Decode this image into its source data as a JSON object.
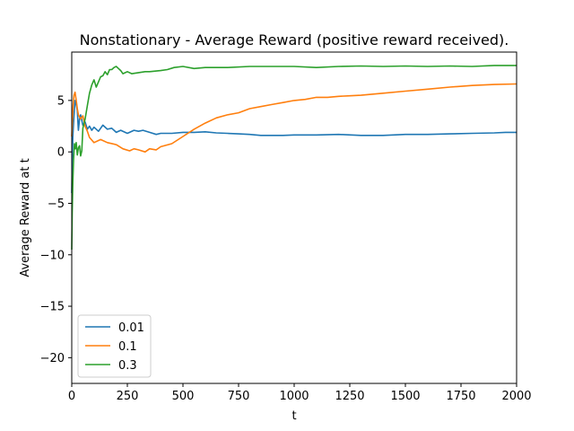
{
  "chart_data": {
    "type": "line",
    "title": "Nonstationary - Average Reward (positive reward received).",
    "xlabel": "t",
    "ylabel": "Average Reward at t",
    "xlim": [
      0,
      2000
    ],
    "ylim": [
      -22.5,
      9.7
    ],
    "xticks": [
      0,
      250,
      500,
      750,
      1000,
      1250,
      1500,
      1750,
      2000
    ],
    "yticks": [
      -20,
      -15,
      -10,
      -5,
      0,
      5
    ],
    "grid": false,
    "legend": "lower-left",
    "series": [
      {
        "name": "0.01",
        "color": "#1f77b4",
        "x": [
          0,
          2,
          5,
          10,
          15,
          20,
          25,
          30,
          35,
          40,
          50,
          60,
          70,
          80,
          90,
          100,
          120,
          140,
          160,
          180,
          200,
          220,
          250,
          280,
          300,
          320,
          350,
          380,
          400,
          450,
          500,
          550,
          600,
          650,
          700,
          750,
          800,
          850,
          900,
          950,
          1000,
          1100,
          1200,
          1300,
          1400,
          1500,
          1600,
          1700,
          1800,
          1900,
          1950,
          2000
        ],
        "y": [
          -4.0,
          -1.0,
          1.5,
          3.5,
          5.0,
          4.6,
          4.0,
          2.1,
          3.2,
          3.6,
          2.6,
          2.9,
          2.2,
          2.5,
          2.1,
          2.4,
          2.0,
          2.6,
          2.2,
          2.3,
          1.9,
          2.1,
          1.8,
          2.1,
          2.0,
          2.1,
          1.9,
          1.7,
          1.8,
          1.8,
          1.9,
          1.9,
          1.95,
          1.85,
          1.8,
          1.75,
          1.7,
          1.6,
          1.6,
          1.6,
          1.65,
          1.65,
          1.7,
          1.6,
          1.6,
          1.7,
          1.7,
          1.75,
          1.8,
          1.85,
          1.9,
          1.9
        ]
      },
      {
        "name": "0.1",
        "color": "#ff7f0e",
        "x": [
          0,
          3,
          6,
          10,
          15,
          20,
          25,
          30,
          40,
          50,
          60,
          70,
          80,
          100,
          130,
          160,
          200,
          230,
          260,
          280,
          300,
          330,
          350,
          380,
          400,
          450,
          500,
          550,
          600,
          650,
          700,
          750,
          800,
          850,
          900,
          950,
          1000,
          1050,
          1100,
          1150,
          1200,
          1250,
          1300,
          1400,
          1500,
          1600,
          1700,
          1800,
          1900,
          2000
        ],
        "y": [
          1.5,
          3.0,
          4.5,
          5.5,
          5.8,
          5.0,
          4.2,
          3.6,
          3.2,
          3.5,
          2.5,
          2.0,
          1.4,
          0.9,
          1.2,
          0.9,
          0.7,
          0.3,
          0.1,
          0.3,
          0.2,
          0.0,
          0.3,
          0.2,
          0.5,
          0.8,
          1.5,
          2.2,
          2.8,
          3.3,
          3.6,
          3.8,
          4.2,
          4.4,
          4.6,
          4.8,
          5.0,
          5.1,
          5.3,
          5.3,
          5.4,
          5.45,
          5.5,
          5.7,
          5.9,
          6.1,
          6.3,
          6.45,
          6.55,
          6.6
        ]
      },
      {
        "name": "0.3",
        "color": "#2ca02c",
        "x": [
          0,
          2,
          5,
          8,
          12,
          16,
          20,
          25,
          30,
          35,
          40,
          45,
          50,
          60,
          70,
          80,
          90,
          100,
          110,
          120,
          130,
          140,
          150,
          160,
          170,
          180,
          190,
          200,
          210,
          220,
          230,
          250,
          270,
          300,
          330,
          350,
          400,
          430,
          460,
          500,
          550,
          600,
          700,
          800,
          900,
          1000,
          1100,
          1200,
          1300,
          1400,
          1500,
          1600,
          1700,
          1800,
          1900,
          2000
        ],
        "y": [
          -9.5,
          -6.0,
          -3.0,
          -0.8,
          0.8,
          0.3,
          0.9,
          -0.3,
          0.4,
          0.6,
          -0.4,
          0.1,
          2.3,
          3.2,
          4.5,
          5.7,
          6.5,
          7.0,
          6.3,
          6.8,
          7.3,
          7.4,
          7.8,
          7.5,
          8.0,
          8.0,
          8.2,
          8.3,
          8.1,
          7.9,
          7.6,
          7.8,
          7.6,
          7.7,
          7.8,
          7.8,
          7.9,
          8.0,
          8.2,
          8.3,
          8.1,
          8.2,
          8.2,
          8.3,
          8.3,
          8.3,
          8.2,
          8.3,
          8.35,
          8.3,
          8.35,
          8.3,
          8.35,
          8.3,
          8.4,
          8.4
        ]
      }
    ]
  }
}
